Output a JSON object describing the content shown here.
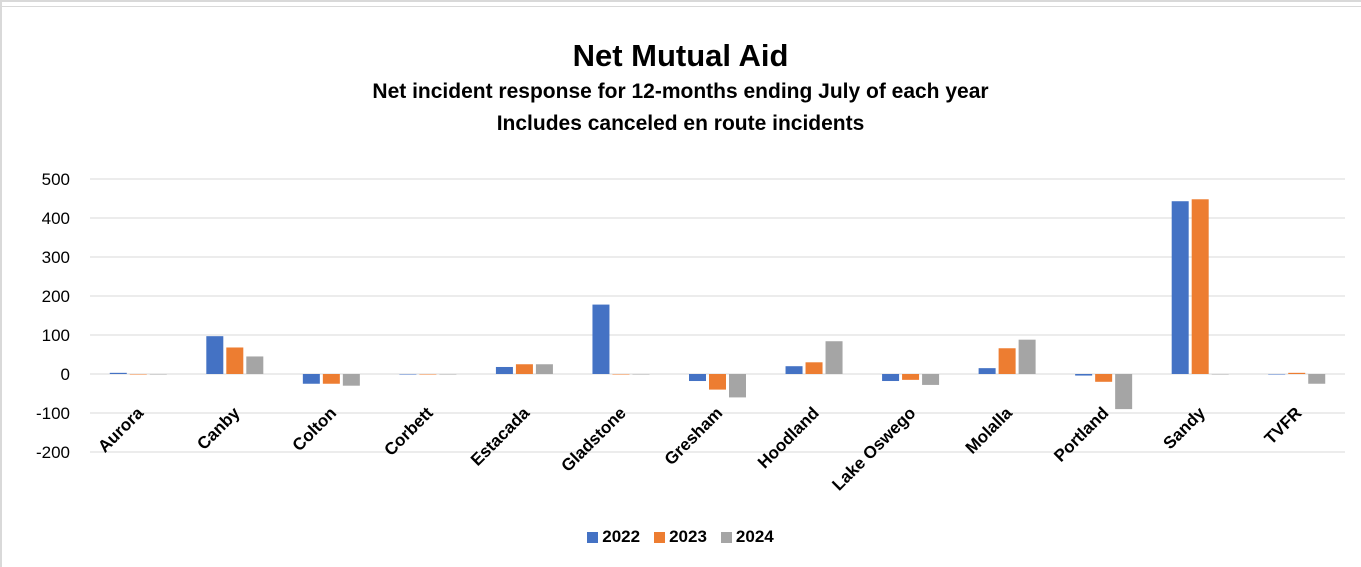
{
  "chart_data": {
    "type": "bar",
    "title": "Net Mutual Aid",
    "subtitle_lines": [
      "Net incident response for 12-months ending July of each year",
      "Includes canceled en route incidents"
    ],
    "categories": [
      "Aurora",
      "Canby",
      "Colton",
      "Corbett",
      "Estacada",
      "Gladstone",
      "Gresham",
      "Hoodland",
      "Lake Oswego",
      "Molalla",
      "Portland",
      "Sandy",
      "TVFR"
    ],
    "series": [
      {
        "name": "2022",
        "color": "#4472C4",
        "values": [
          3,
          97,
          -25,
          0,
          18,
          178,
          -18,
          20,
          -18,
          15,
          -4,
          443,
          0
        ]
      },
      {
        "name": "2023",
        "color": "#ED7D31",
        "values": [
          0,
          68,
          -25,
          0,
          25,
          0,
          -40,
          30,
          -15,
          66,
          -20,
          448,
          3
        ]
      },
      {
        "name": "2024",
        "color": "#A5A5A5",
        "values": [
          0,
          45,
          -30,
          0,
          25,
          0,
          -60,
          84,
          -28,
          88,
          -90,
          0,
          -25
        ]
      }
    ],
    "yticks": [
      500,
      400,
      300,
      200,
      100,
      0,
      -100,
      -200
    ],
    "ylim": [
      -200,
      500
    ],
    "grid": true,
    "legend_position": "bottom"
  }
}
